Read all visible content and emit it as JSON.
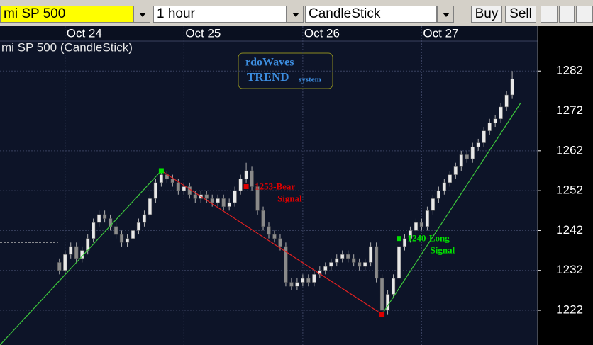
{
  "toolbar": {
    "symbol": "mi SP 500",
    "interval": "1 hour",
    "chart_style": "CandleStick",
    "buy": "Buy",
    "sell": "Sell"
  },
  "chart_data": {
    "type": "candlestick",
    "title": "mi SP 500 (CandleStick)",
    "legend_box": [
      "rdoWaves",
      "TREND",
      "system"
    ],
    "up_color": "#e8e8e8",
    "down_color": "#8a8a8a",
    "wick_color": "#b0b0b0",
    "xlim": [
      -10.5,
      84.5
    ],
    "xticks": [
      {
        "value": 1,
        "label": "Oct 24"
      },
      {
        "value": 22,
        "label": "Oct 25"
      },
      {
        "value": 43,
        "label": "Oct 26"
      },
      {
        "value": 64,
        "label": "Oct 27"
      }
    ],
    "ylim": [
      1213.3,
      1289.5
    ],
    "yticks": [
      1222,
      1232,
      1242,
      1252,
      1262,
      1272,
      1282
    ],
    "grid": true,
    "open": [
      1234,
      1232,
      1236,
      1238,
      1235,
      1237,
      1240,
      1244,
      1246,
      1245,
      1243,
      1241,
      1239,
      1240,
      1242,
      1244,
      1246,
      1250,
      1254,
      1256,
      1255,
      1254,
      1252,
      1253,
      1251,
      1250,
      1251,
      1250,
      1249,
      1250,
      1248,
      1249,
      1252,
      1255,
      1257,
      1253,
      1247,
      1243,
      1241,
      1240,
      1238,
      1229,
      1228,
      1229,
      1230,
      1229,
      1231,
      1232,
      1233,
      1234,
      1235,
      1236,
      1235,
      1234,
      1233,
      1234,
      1238,
      1230,
      1222,
      1226,
      1230,
      1238,
      1240,
      1242,
      1244,
      1243,
      1247,
      1250,
      1252,
      1254,
      1256,
      1258,
      1261,
      1260,
      1263,
      1264,
      1267,
      1269,
      1270,
      1273,
      1276
    ],
    "high": [
      1235,
      1237,
      1239,
      1239,
      1238,
      1241,
      1245,
      1247,
      1247,
      1246,
      1244,
      1242,
      1241,
      1243,
      1245,
      1247,
      1251,
      1255,
      1257,
      1257,
      1256,
      1255,
      1254,
      1254,
      1252,
      1252,
      1252,
      1251,
      1251,
      1251,
      1250,
      1253,
      1256,
      1259,
      1258,
      1254,
      1248,
      1244,
      1242,
      1241,
      1239,
      1230,
      1230,
      1231,
      1231,
      1232,
      1233,
      1234,
      1235,
      1236,
      1237,
      1237,
      1236,
      1235,
      1235,
      1239,
      1239,
      1231,
      1227,
      1231,
      1239,
      1241,
      1243,
      1245,
      1245,
      1248,
      1251,
      1253,
      1255,
      1257,
      1259,
      1262,
      1262,
      1264,
      1265,
      1268,
      1270,
      1271,
      1274,
      1277,
      1282
    ],
    "low": [
      1231,
      1231,
      1235,
      1234,
      1234,
      1236,
      1239,
      1243,
      1244,
      1242,
      1240,
      1238,
      1238,
      1239,
      1241,
      1243,
      1245,
      1249,
      1253,
      1254,
      1253,
      1251,
      1251,
      1250,
      1249,
      1249,
      1249,
      1248,
      1248,
      1247,
      1247,
      1248,
      1251,
      1254,
      1252,
      1246,
      1242,
      1240,
      1239,
      1237,
      1228,
      1227,
      1227,
      1228,
      1228,
      1228,
      1230,
      1231,
      1232,
      1233,
      1234,
      1234,
      1233,
      1232,
      1232,
      1233,
      1229,
      1221,
      1221,
      1225,
      1229,
      1237,
      1239,
      1241,
      1242,
      1242,
      1246,
      1249,
      1251,
      1253,
      1255,
      1257,
      1259,
      1259,
      1262,
      1263,
      1266,
      1268,
      1269,
      1272,
      1275
    ],
    "close": [
      1232,
      1236,
      1238,
      1235,
      1237,
      1240,
      1244,
      1246,
      1245,
      1243,
      1241,
      1239,
      1240,
      1242,
      1244,
      1246,
      1250,
      1254,
      1256,
      1255,
      1254,
      1252,
      1253,
      1251,
      1250,
      1251,
      1250,
      1249,
      1250,
      1248,
      1249,
      1252,
      1255,
      1257,
      1253,
      1247,
      1243,
      1241,
      1240,
      1238,
      1229,
      1228,
      1229,
      1230,
      1229,
      1231,
      1232,
      1233,
      1234,
      1235,
      1236,
      1235,
      1234,
      1233,
      1234,
      1238,
      1230,
      1222,
      1226,
      1230,
      1238,
      1240,
      1242,
      1244,
      1243,
      1247,
      1250,
      1252,
      1254,
      1256,
      1258,
      1261,
      1260,
      1263,
      1264,
      1267,
      1269,
      1270,
      1273,
      1276,
      1280
    ],
    "reference_line": {
      "value": 1239,
      "color": "#b0b0b0"
    },
    "trendlines": [
      {
        "color": "#3cc83c",
        "x": [
          -10.5,
          18
        ],
        "y": [
          1213.3,
          1257
        ]
      },
      {
        "color": "#e02020",
        "x": [
          18,
          57
        ],
        "y": [
          1257,
          1221
        ]
      },
      {
        "color": "#3cc83c",
        "x": [
          57,
          81.5
        ],
        "y": [
          1221,
          1274
        ]
      }
    ],
    "signals": [
      {
        "x": 18,
        "y": 1257,
        "color": "#00e000"
      },
      {
        "x": 33,
        "y": 1253,
        "color": "#e00000",
        "label": [
          "1253-Bear",
          "Signal"
        ]
      },
      {
        "x": 57,
        "y": 1221,
        "color": "#e00000"
      },
      {
        "x": 60,
        "y": 1240,
        "color": "#00e000",
        "label": [
          "1240-Long",
          "Signal"
        ]
      }
    ]
  }
}
